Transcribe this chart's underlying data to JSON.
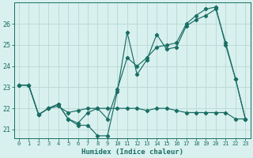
{
  "xlabel": "Humidex (Indice chaleur)",
  "bg_color": "#d8f0ee",
  "grid_color": "#b8d8d4",
  "line_color": "#1a6e64",
  "xlim": [
    -0.5,
    23.5
  ],
  "ylim": [
    20.6,
    27.0
  ],
  "yticks": [
    21,
    22,
    23,
    24,
    25,
    26
  ],
  "xtick_labels": [
    "0",
    "1",
    "2",
    "3",
    "4",
    "5",
    "6",
    "7",
    "8",
    "9",
    "10",
    "11",
    "12",
    "13",
    "14",
    "15",
    "16",
    "17",
    "18",
    "19",
    "20",
    "21",
    "22",
    "23"
  ],
  "s1_y": [
    23.1,
    23.1,
    21.7,
    22.0,
    22.2,
    21.5,
    21.2,
    21.2,
    20.7,
    20.7,
    22.8,
    25.6,
    23.6,
    24.3,
    25.5,
    24.8,
    24.9,
    25.9,
    26.2,
    26.4,
    26.7,
    25.1,
    23.4,
    21.5
  ],
  "s2_y": [
    23.1,
    23.1,
    21.7,
    22.0,
    22.2,
    21.5,
    21.3,
    21.8,
    22.0,
    21.5,
    22.9,
    24.4,
    24.0,
    24.4,
    24.9,
    25.0,
    25.1,
    26.0,
    26.4,
    26.7,
    26.8,
    25.0,
    23.4,
    21.5
  ],
  "s3_y": [
    23.1,
    23.1,
    21.7,
    22.0,
    22.1,
    21.8,
    21.9,
    22.0,
    22.0,
    22.0,
    22.0,
    22.0,
    22.0,
    21.9,
    22.0,
    22.0,
    21.9,
    21.8,
    21.8,
    21.8,
    21.8,
    21.8,
    21.5,
    21.5
  ]
}
